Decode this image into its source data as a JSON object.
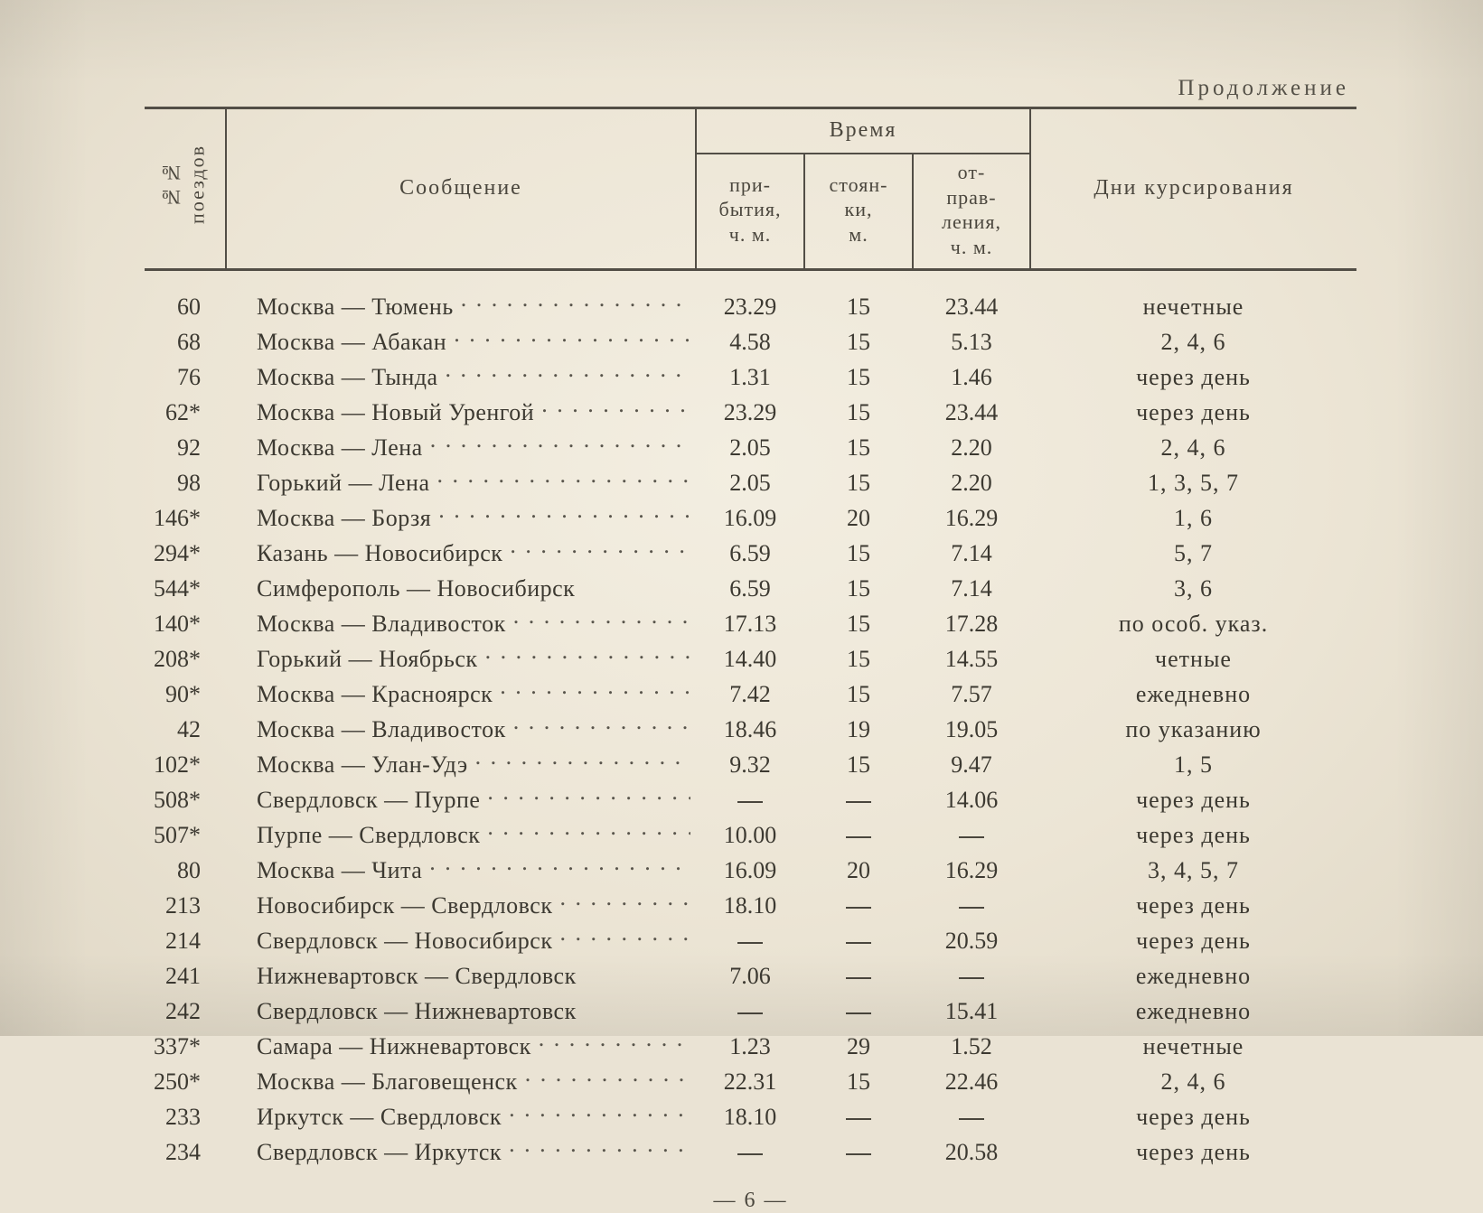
{
  "page": {
    "continuation_label": "Продолжение",
    "faint_top_left": "",
    "page_number_display": "— 6 —",
    "background_color": "#ece5d5",
    "text_color": "#3c3931",
    "rule_color": "#524e46",
    "body_fontsize_pt": 19,
    "header_fontsize_pt": 18
  },
  "header": {
    "train_no_vertical": "№№\nпоездов",
    "route": "Сообщение",
    "time_group": "Время",
    "arrival": "при-\nбытия,\nч. м.",
    "stop": "стоян-\nки,\nм.",
    "departure": "от-\nправ-\nления,\nч. м.",
    "days": "Дни курсирования"
  },
  "rows": [
    {
      "no": "60",
      "route": "Москва — Тюмень",
      "leader": true,
      "arr": "23.29",
      "stop": "15",
      "dep": "23.44",
      "days": "нечетные"
    },
    {
      "no": "68",
      "route": "Москва — Абакан",
      "leader": true,
      "arr": "4.58",
      "stop": "15",
      "dep": "5.13",
      "days": "2, 4, 6"
    },
    {
      "no": "76",
      "route": "Москва — Тында",
      "leader": true,
      "arr": "1.31",
      "stop": "15",
      "dep": "1.46",
      "days": "через день"
    },
    {
      "no": "62*",
      "route": "Москва — Новый Уренгой",
      "leader": true,
      "arr": "23.29",
      "stop": "15",
      "dep": "23.44",
      "days": "через день"
    },
    {
      "no": "92",
      "route": "Москва — Лена",
      "leader": true,
      "arr": "2.05",
      "stop": "15",
      "dep": "2.20",
      "days": "2, 4, 6"
    },
    {
      "no": "98",
      "route": "Горький — Лена",
      "leader": true,
      "arr": "2.05",
      "stop": "15",
      "dep": "2.20",
      "days": "1, 3, 5, 7"
    },
    {
      "no": "146*",
      "route": "Москва — Борзя",
      "leader": true,
      "arr": "16.09",
      "stop": "20",
      "dep": "16.29",
      "days": "1, 6"
    },
    {
      "no": "294*",
      "route": "Казань — Новосибирск",
      "leader": true,
      "arr": "6.59",
      "stop": "15",
      "dep": "7.14",
      "days": "5, 7"
    },
    {
      "no": "544*",
      "route": "Симферополь — Новосибирск",
      "leader": false,
      "arr": "6.59",
      "stop": "15",
      "dep": "7.14",
      "days": "3, 6"
    },
    {
      "no": "140*",
      "route": "Москва — Владивосток",
      "leader": true,
      "arr": "17.13",
      "stop": "15",
      "dep": "17.28",
      "days": "по особ. указ."
    },
    {
      "no": "208*",
      "route": "Горький — Ноябрьск",
      "leader": true,
      "arr": "14.40",
      "stop": "15",
      "dep": "14.55",
      "days": "четные"
    },
    {
      "no": "90*",
      "route": "Москва — Красноярск",
      "leader": true,
      "arr": "7.42",
      "stop": "15",
      "dep": "7.57",
      "days": "ежедневно"
    },
    {
      "no": "42",
      "route": "Москва — Владивосток",
      "leader": true,
      "arr": "18.46",
      "stop": "19",
      "dep": "19.05",
      "days": "по указанию"
    },
    {
      "no": "102*",
      "route": "Москва — Улан-Удэ",
      "leader": true,
      "arr": "9.32",
      "stop": "15",
      "dep": "9.47",
      "days": "1, 5"
    },
    {
      "no": "508*",
      "route": "Свердловск — Пурпе",
      "leader": true,
      "arr": "—",
      "stop": "—",
      "dep": "14.06",
      "days": "через день"
    },
    {
      "no": "507*",
      "route": "Пурпе — Свердловск",
      "leader": true,
      "arr": "10.00",
      "stop": "—",
      "dep": "—",
      "days": "через день"
    },
    {
      "no": "80",
      "route": "Москва — Чита",
      "leader": true,
      "arr": "16.09",
      "stop": "20",
      "dep": "16.29",
      "days": "3, 4, 5, 7"
    },
    {
      "no": "213",
      "route": "Новосибирск — Свердловск",
      "leader": true,
      "arr": "18.10",
      "stop": "—",
      "dep": "—",
      "days": "через день"
    },
    {
      "no": "214",
      "route": "Свердловск — Новосибирск",
      "leader": true,
      "arr": "—",
      "stop": "—",
      "dep": "20.59",
      "days": "через день"
    },
    {
      "no": "241",
      "route": "Нижневартовск — Свердловск",
      "leader": false,
      "arr": "7.06",
      "stop": "—",
      "dep": "—",
      "days": "ежедневно"
    },
    {
      "no": "242",
      "route": "Свердловск — Нижневартовск",
      "leader": false,
      "arr": "—",
      "stop": "—",
      "dep": "15.41",
      "days": "ежедневно"
    },
    {
      "no": "337*",
      "route": "Самара — Нижневартовск",
      "leader": true,
      "arr": "1.23",
      "stop": "29",
      "dep": "1.52",
      "days": "нечетные"
    },
    {
      "no": "250*",
      "route": "Москва — Благовещенск",
      "leader": true,
      "arr": "22.31",
      "stop": "15",
      "dep": "22.46",
      "days": "2, 4, 6"
    },
    {
      "no": "233",
      "route": "Иркутск — Свердловск",
      "leader": true,
      "arr": "18.10",
      "stop": "—",
      "dep": "—",
      "days": "через день"
    },
    {
      "no": "234",
      "route": "Свердловск — Иркутск",
      "leader": true,
      "arr": "—",
      "stop": "—",
      "dep": "20.58",
      "days": "через день"
    }
  ]
}
